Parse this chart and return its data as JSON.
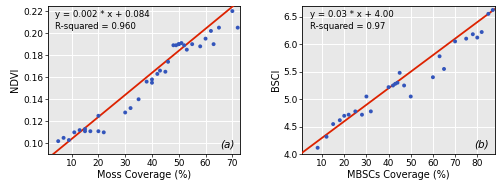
{
  "plot_a": {
    "scatter_x": [
      5,
      7,
      9,
      11,
      13,
      15,
      15,
      17,
      20,
      20,
      22,
      30,
      32,
      35,
      38,
      40,
      40,
      42,
      43,
      45,
      46,
      48,
      49,
      50,
      50,
      51,
      52,
      53,
      55,
      58,
      60,
      62,
      63,
      65,
      70,
      72
    ],
    "scatter_y": [
      0.102,
      0.105,
      0.103,
      0.11,
      0.112,
      0.111,
      0.113,
      0.111,
      0.111,
      0.125,
      0.11,
      0.128,
      0.132,
      0.14,
      0.156,
      0.155,
      0.158,
      0.163,
      0.166,
      0.165,
      0.174,
      0.189,
      0.189,
      0.19,
      0.19,
      0.191,
      0.189,
      0.185,
      0.19,
      0.188,
      0.195,
      0.202,
      0.19,
      0.205,
      0.22,
      0.205
    ],
    "line_x": [
      0,
      73
    ],
    "line_y": [
      0.084,
      0.23
    ],
    "equation": "y = 0.002 * x + 0.084",
    "r_squared": "R-squared = 0.960",
    "xlabel": "Moss Coverage (%)",
    "ylabel": "NDVI",
    "xlim": [
      1,
      73
    ],
    "ylim": [
      0.09,
      0.225
    ],
    "yticks": [
      0.1,
      0.12,
      0.14,
      0.16,
      0.18,
      0.2,
      0.22
    ],
    "xticks": [
      10,
      20,
      30,
      40,
      50,
      60,
      70
    ],
    "label": "(a)"
  },
  "plot_b": {
    "scatter_x": [
      8,
      12,
      15,
      18,
      20,
      22,
      25,
      28,
      30,
      32,
      40,
      42,
      43,
      44,
      45,
      47,
      50,
      60,
      63,
      65,
      70,
      75,
      78,
      80,
      82,
      85,
      87
    ],
    "scatter_y": [
      4.12,
      4.32,
      4.55,
      4.62,
      4.7,
      4.72,
      4.78,
      4.72,
      5.05,
      4.78,
      5.22,
      5.25,
      5.28,
      5.3,
      5.48,
      5.25,
      5.05,
      5.4,
      5.78,
      5.55,
      6.05,
      6.1,
      6.18,
      6.12,
      6.22,
      6.55,
      6.62
    ],
    "line_x": [
      0,
      88
    ],
    "line_y": [
      4.0,
      6.64
    ],
    "equation": "y = 0.03 * x + 4.00",
    "r_squared": "R-squared = 0.97",
    "xlabel": "MBSCs Coverage (%)",
    "ylabel": "BSCI",
    "xlim": [
      1,
      88
    ],
    "ylim": [
      4.0,
      6.7
    ],
    "yticks": [
      4.0,
      4.5,
      5.0,
      5.5,
      6.0,
      6.5
    ],
    "xticks": [
      10,
      20,
      30,
      40,
      50,
      60,
      70,
      80
    ],
    "label": "(b)"
  },
  "scatter_color": "#3355bb",
  "line_color": "#dd2200",
  "bg_color": "#e8e8e8",
  "grid_color": "#ffffff",
  "marker_size": 8,
  "line_width": 1.3,
  "label_font_size": 7.0,
  "tick_font_size": 6.5,
  "annotation_font_size": 6.2,
  "sublabel_font_size": 7.5
}
